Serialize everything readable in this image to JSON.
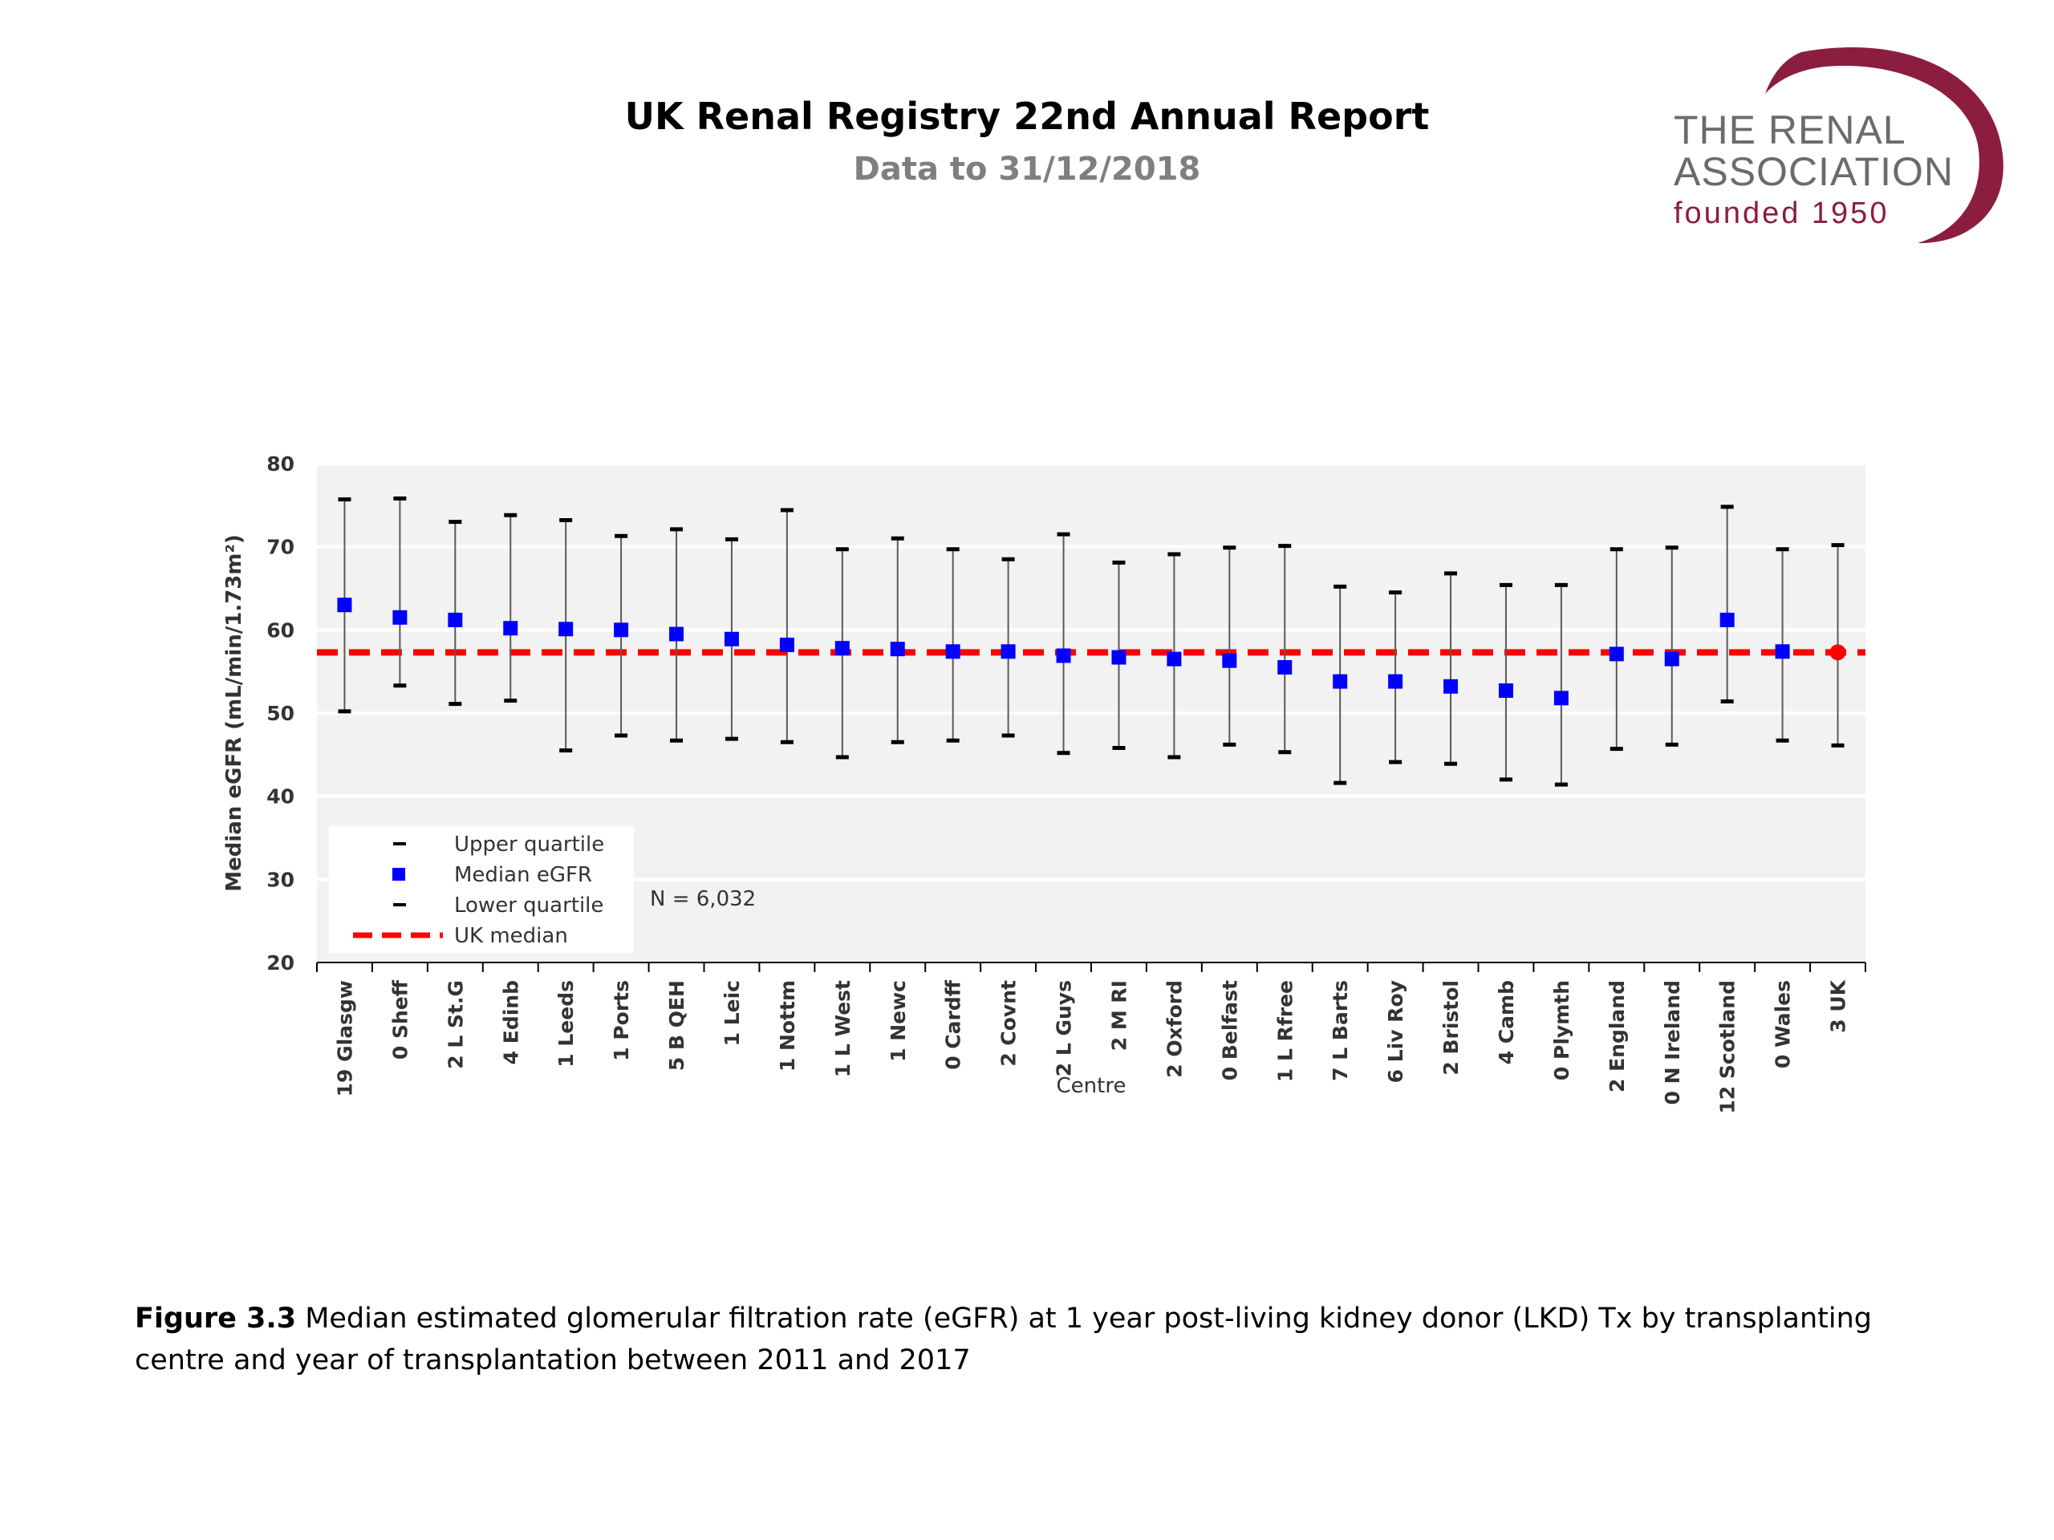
{
  "header": {
    "title": "UK Renal Registry 22nd Annual Report",
    "subtitle": "Data to 31/12/2018"
  },
  "logo": {
    "line1": "THE RENAL",
    "line2": "ASSOCIATION",
    "line3": "founded 1950",
    "color": "#8b1e3f"
  },
  "caption": {
    "label": "Figure 3.3",
    "text": "Median estimated glomerular filtration rate (eGFR) at 1 year post-living kidney donor (LKD) Tx by transplanting centre and year of transplantation between 2011 and 2017"
  },
  "chart_data": {
    "type": "scatter",
    "xlabel": "Centre",
    "ylabel": "Median eGFR (mL/min/1.73m²)",
    "ylim": [
      20,
      80
    ],
    "yticks": [
      20,
      30,
      40,
      50,
      60,
      70,
      80
    ],
    "grid": true,
    "annotation": "N = 6,032",
    "uk_median": 57.3,
    "legend": {
      "placement": "bottom-left",
      "items": [
        "Upper quartile",
        "Median eGFR",
        "Lower quartile",
        "UK median"
      ]
    },
    "colors": {
      "median": "#0000ff",
      "uk_median": "#ff0000",
      "whisker": "#000000",
      "plot_bg": "#f2f2f2"
    },
    "categories": [
      "19 Glasgw",
      "0 Sheff",
      "2 L St.G",
      "4 Edinb",
      "1 Leeds",
      "1 Ports",
      "5 B QEH",
      "1 Leic",
      "1 Nottm",
      "1 L West",
      "1 Newc",
      "0 Cardff",
      "2 Covnt",
      "2 L Guys",
      "2 M RI",
      "2 Oxford",
      "0 Belfast",
      "1 L Rfree",
      "7 L Barts",
      "6 Liv Roy",
      "2 Bristol",
      "4 Camb",
      "0 Plymth",
      "2 England",
      "0 N Ireland",
      "12 Scotland",
      "0 Wales",
      "3 UK"
    ],
    "median": [
      63.0,
      61.5,
      61.2,
      60.2,
      60.1,
      60.0,
      59.5,
      58.9,
      58.2,
      57.8,
      57.7,
      57.4,
      57.4,
      56.9,
      56.7,
      56.5,
      56.3,
      55.5,
      53.8,
      53.8,
      53.2,
      52.7,
      51.8,
      57.1,
      56.5,
      61.2,
      57.4,
      57.3
    ],
    "upper_quartile": [
      75.7,
      75.8,
      73.0,
      73.8,
      73.2,
      71.3,
      72.1,
      70.9,
      74.4,
      69.7,
      71.0,
      69.7,
      68.5,
      71.5,
      68.1,
      69.1,
      69.9,
      70.1,
      65.2,
      64.5,
      66.8,
      65.4,
      65.4,
      69.7,
      69.9,
      74.8,
      69.7,
      70.2
    ],
    "lower_quartile": [
      50.2,
      53.3,
      51.1,
      51.5,
      45.5,
      47.3,
      46.7,
      46.9,
      46.5,
      44.7,
      46.5,
      46.7,
      47.3,
      45.2,
      45.8,
      44.7,
      46.2,
      45.3,
      41.6,
      44.1,
      43.9,
      42.0,
      41.4,
      45.7,
      46.2,
      51.4,
      46.7,
      46.1
    ]
  }
}
